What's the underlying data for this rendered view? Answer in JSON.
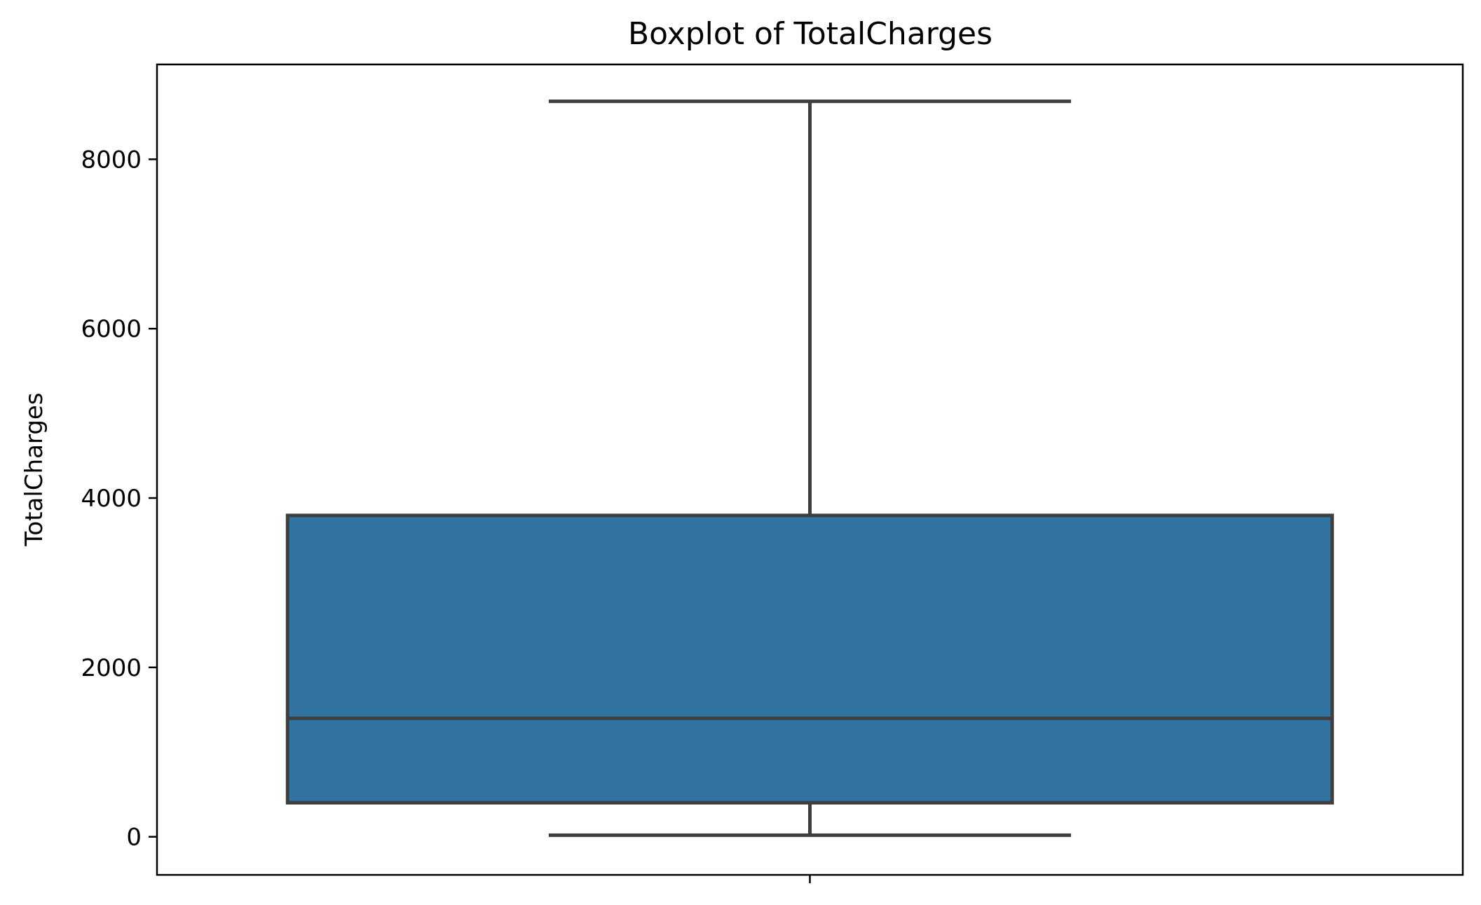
{
  "chart_data": {
    "type": "box",
    "title": "Boxplot of TotalCharges",
    "xlabel": "",
    "ylabel": "TotalCharges",
    "ylim": [
      -450,
      9120
    ],
    "yticks": [
      0,
      2000,
      4000,
      6000,
      8000
    ],
    "ytick_labels": [
      "0",
      "2000",
      "4000",
      "6000",
      "8000"
    ],
    "grid": false,
    "box_color": "#3274a1",
    "line_color": "#3f3f3f",
    "boxes": [
      {
        "whisker_low": 18.8,
        "q1": 401.45,
        "median": 1397.5,
        "q3": 3794.7,
        "whisker_high": 8684.8
      }
    ]
  }
}
